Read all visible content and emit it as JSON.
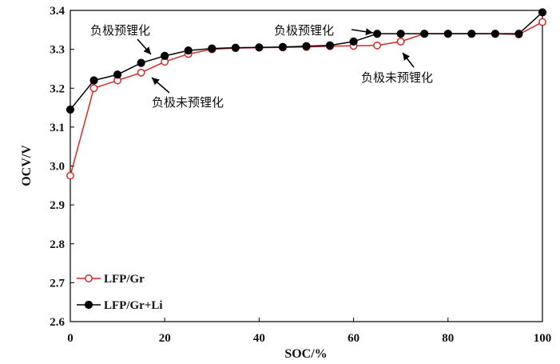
{
  "chart_data": {
    "type": "line",
    "title": "",
    "xlabel": "SOC/%",
    "ylabel": "OCV/V",
    "xlim": [
      0,
      100
    ],
    "ylim": [
      2.6,
      3.4
    ],
    "xticks": [
      0,
      20,
      40,
      60,
      80,
      100
    ],
    "yticks": [
      2.6,
      2.7,
      2.8,
      2.9,
      3.0,
      3.1,
      3.2,
      3.3,
      3.4
    ],
    "ytick_labels": [
      "2.6",
      "2.7",
      "2.8",
      "2.9",
      "3.0",
      "3.1",
      "3.2",
      "3.3",
      "3.4"
    ],
    "grid": false,
    "legend_position": "bottom-left",
    "series": [
      {
        "name": "LFP/Gr",
        "color": "#d62728",
        "marker": "open-circle",
        "x": [
          0,
          5,
          10,
          15,
          20,
          25,
          30,
          35,
          40,
          45,
          50,
          55,
          60,
          65,
          70,
          75,
          80,
          85,
          90,
          95,
          100
        ],
        "y": [
          2.975,
          3.2,
          3.22,
          3.24,
          3.268,
          3.288,
          3.3,
          3.303,
          3.304,
          3.305,
          3.306,
          3.308,
          3.309,
          3.31,
          3.32,
          3.34,
          3.34,
          3.34,
          3.34,
          3.338,
          3.37
        ]
      },
      {
        "name": "LFP/Gr+Li",
        "color": "#000000",
        "marker": "filled-circle",
        "x": [
          0,
          5,
          10,
          15,
          20,
          25,
          30,
          35,
          40,
          45,
          50,
          55,
          60,
          65,
          70,
          75,
          80,
          85,
          90,
          95,
          100
        ],
        "y": [
          3.145,
          3.22,
          3.235,
          3.265,
          3.283,
          3.297,
          3.302,
          3.304,
          3.305,
          3.306,
          3.308,
          3.31,
          3.32,
          3.34,
          3.34,
          3.34,
          3.34,
          3.34,
          3.34,
          3.34,
          3.395
        ]
      }
    ],
    "annotations": [
      {
        "text": "负极预锂化",
        "series": "LFP/Gr+Li",
        "x": 14,
        "y": 3.265
      },
      {
        "text": "负极未预锂化",
        "series": "LFP/Gr",
        "x": 16,
        "y": 3.24
      },
      {
        "text": "负极预锂化",
        "series": "LFP/Gr+Li",
        "x": 63,
        "y": 3.33
      },
      {
        "text": "负极未预锂化",
        "series": "LFP/Gr",
        "x": 71,
        "y": 3.32
      }
    ]
  }
}
